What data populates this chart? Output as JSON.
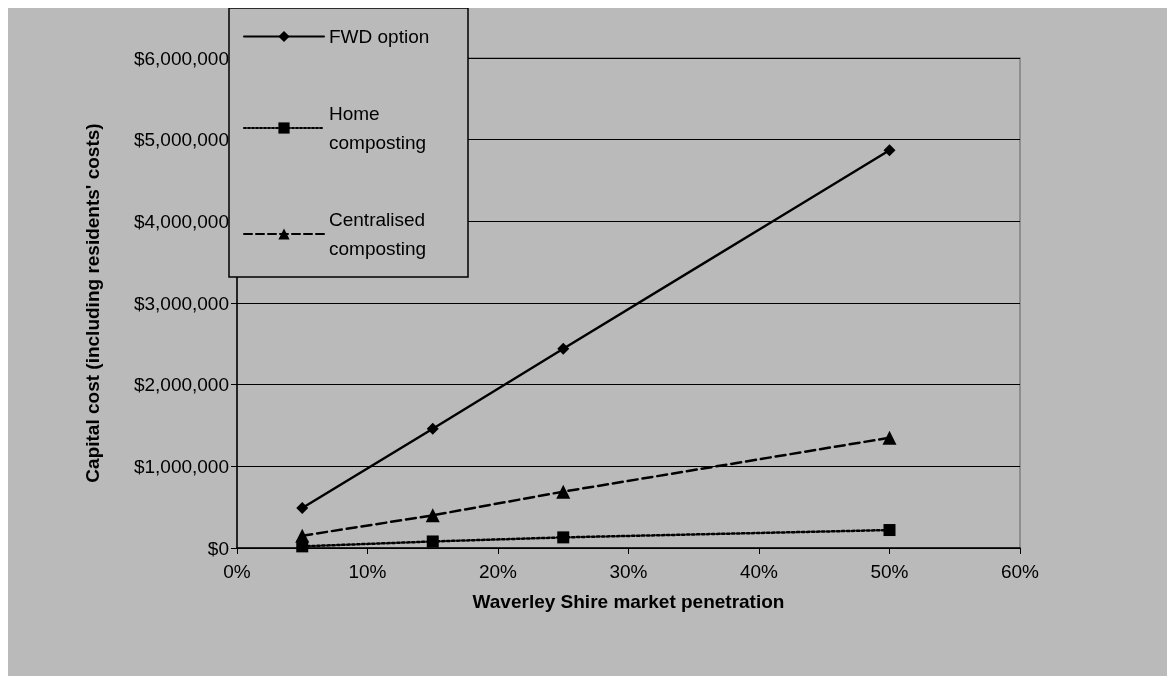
{
  "chart_data": {
    "type": "line",
    "xlabel": "Waverley Shire market penetration",
    "ylabel": "Capital cost (including residents' costs)",
    "x": [
      5,
      15,
      25,
      50
    ],
    "series": [
      {
        "name": "FWD option",
        "color": "#000000",
        "marker": "diamond",
        "line_style": "solid",
        "values": [
          490000,
          1460000,
          2440000,
          4870000
        ]
      },
      {
        "name": "Home composting",
        "color": "#000000",
        "marker": "square",
        "line_style": "dotted",
        "values": [
          20000,
          80000,
          130000,
          220000
        ]
      },
      {
        "name": "Centralised composting",
        "color": "#000000",
        "marker": "triangle",
        "line_style": "dashed",
        "values": [
          150000,
          400000,
          690000,
          1350000
        ]
      }
    ],
    "xlim": [
      0,
      60
    ],
    "xticks": [
      {
        "value": 0,
        "label": "0%"
      },
      {
        "value": 10,
        "label": "10%"
      },
      {
        "value": 20,
        "label": "20%"
      },
      {
        "value": 30,
        "label": "30%"
      },
      {
        "value": 40,
        "label": "40%"
      },
      {
        "value": 50,
        "label": "50%"
      },
      {
        "value": 60,
        "label": "60%"
      }
    ],
    "ylim": [
      0,
      6000000
    ],
    "yticks": [
      {
        "value": 0,
        "label": "$0"
      },
      {
        "value": 1000000,
        "label": "$1,000,000"
      },
      {
        "value": 2000000,
        "label": "$2,000,000"
      },
      {
        "value": 3000000,
        "label": "$3,000,000"
      },
      {
        "value": 4000000,
        "label": "$4,000,000"
      },
      {
        "value": 5000000,
        "label": "$5,000,000"
      },
      {
        "value": 6000000,
        "label": "$6,000,000"
      }
    ],
    "grid": "y",
    "legend": "top left"
  }
}
